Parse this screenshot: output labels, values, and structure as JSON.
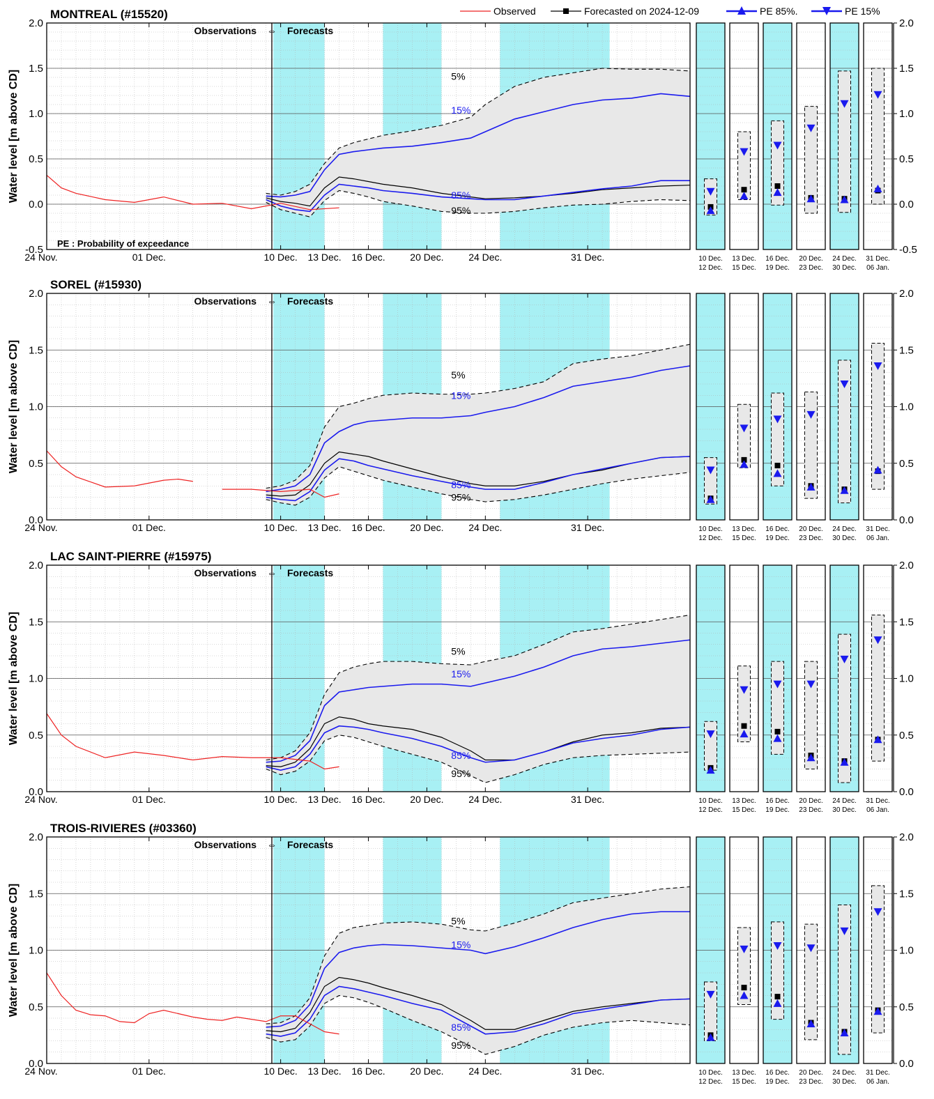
{
  "legend": {
    "observed": "Observed",
    "forecasted": "Forecasted on 2024-12-09",
    "pe85": "PE 85%.",
    "pe15": "PE 15%"
  },
  "common": {
    "ylabel": "Water level [m above CD]",
    "obs_label": "Observations",
    "fc_label": "Forecasts",
    "pe_note": "PE : Probability of exceedance",
    "x_ticks": [
      "24 Nov.",
      "01 Dec.",
      "10 Dec.",
      "13 Dec.",
      "16 Dec.",
      "20 Dec.",
      "24 Dec.",
      "31 Dec."
    ],
    "pct_labels": [
      "5%",
      "15%",
      "85%",
      "95%"
    ],
    "period_labels": [
      [
        "10 Dec.",
        "12 Dec."
      ],
      [
        "13 Dec.",
        "15 Dec."
      ],
      [
        "16 Dec.",
        "19 Dec."
      ],
      [
        "20 Dec.",
        "23 Dec."
      ],
      [
        "24 Dec.",
        "30 Dec."
      ],
      [
        "31 Dec.",
        "06 Jan."
      ]
    ]
  },
  "colors": {
    "observed": "#ee2222",
    "forecast": "#000000",
    "pe": "#1a1aee",
    "shade": "#a8f0f4",
    "band": "#e8e8e8",
    "grid": "#b0b0b0"
  },
  "chart_data": [
    {
      "type": "line",
      "title": "MONTREAL (#15520)",
      "ylim": [
        -0.5,
        2.0
      ],
      "y_ticks": [
        "-0.5",
        "0.0",
        "0.5",
        "1.0",
        "1.5",
        "2.0"
      ],
      "observed": {
        "x": [
          0,
          1,
          2,
          4,
          6,
          8,
          10,
          12,
          14,
          16,
          18,
          20
        ],
        "y": [
          0.32,
          0.18,
          0.12,
          0.05,
          0.02,
          0.08,
          0.0,
          0.01,
          -0.05,
          0.01,
          -0.06,
          -0.04
        ]
      },
      "forecast": {
        "x": [
          15,
          16,
          17,
          18,
          19,
          20,
          21,
          22,
          23,
          25,
          27,
          29,
          30,
          32,
          34,
          36,
          38,
          40,
          42,
          44
        ],
        "p05": [
          0.12,
          0.1,
          0.14,
          0.22,
          0.45,
          0.62,
          0.68,
          0.72,
          0.76,
          0.81,
          0.87,
          0.96,
          1.1,
          1.3,
          1.4,
          1.45,
          1.5,
          1.49,
          1.49,
          1.47
        ],
        "p15": [
          0.09,
          0.08,
          0.1,
          0.14,
          0.38,
          0.55,
          0.58,
          0.6,
          0.62,
          0.64,
          0.68,
          0.73,
          0.8,
          0.94,
          1.02,
          1.1,
          1.15,
          1.17,
          1.22,
          1.19
        ],
        "fc": [
          0.07,
          0.03,
          0.01,
          -0.02,
          0.18,
          0.3,
          0.28,
          0.25,
          0.22,
          0.18,
          0.12,
          0.08,
          0.06,
          0.07,
          0.09,
          0.12,
          0.16,
          0.18,
          0.2,
          0.21
        ],
        "p85": [
          0.05,
          -0.02,
          -0.06,
          -0.08,
          0.1,
          0.22,
          0.2,
          0.18,
          0.15,
          0.12,
          0.08,
          0.06,
          0.05,
          0.05,
          0.09,
          0.13,
          0.17,
          0.2,
          0.26,
          0.26
        ],
        "p95": [
          0.02,
          -0.06,
          -0.1,
          -0.14,
          0.04,
          0.15,
          0.12,
          0.08,
          0.03,
          -0.02,
          -0.08,
          -0.1,
          -0.1,
          -0.08,
          -0.04,
          -0.01,
          0.0,
          0.03,
          0.05,
          0.04
        ]
      },
      "pct_y": {
        "p05": 1.41,
        "p15": 1.04,
        "p85": 0.1,
        "p95": -0.07
      },
      "boxes": [
        {
          "lo": -0.12,
          "hi": 0.28,
          "p15": 0.14,
          "fc": -0.03,
          "p85": -0.07
        },
        {
          "lo": 0.05,
          "hi": 0.8,
          "p15": 0.58,
          "fc": 0.16,
          "p85": 0.09
        },
        {
          "lo": -0.01,
          "hi": 0.92,
          "p15": 0.65,
          "fc": 0.2,
          "p85": 0.13
        },
        {
          "lo": -0.1,
          "hi": 1.08,
          "p15": 0.84,
          "fc": 0.07,
          "p85": 0.06
        },
        {
          "lo": -0.09,
          "hi": 1.47,
          "p15": 1.11,
          "fc": 0.06,
          "p85": 0.05
        },
        {
          "lo": 0.0,
          "hi": 1.5,
          "p15": 1.21,
          "fc": 0.15,
          "p85": 0.17
        }
      ]
    },
    {
      "type": "line",
      "title": "SOREL (#15930)",
      "ylim": [
        0.0,
        2.0
      ],
      "y_ticks": [
        "0.0",
        "0.5",
        "1.0",
        "1.5",
        "2.0"
      ],
      "observed": {
        "x": [
          0,
          1,
          2,
          4,
          6,
          8,
          9,
          10,
          11.5,
          12,
          14,
          16,
          18,
          19,
          20
        ],
        "y": [
          0.61,
          0.47,
          0.38,
          0.29,
          0.3,
          0.35,
          0.36,
          0.34,
          null,
          0.27,
          0.27,
          0.25,
          0.27,
          0.2,
          0.23
        ]
      },
      "forecast": {
        "x": [
          15,
          16,
          17,
          18,
          19,
          20,
          21,
          22,
          23,
          25,
          27,
          29,
          30,
          32,
          34,
          36,
          38,
          40,
          42,
          44
        ],
        "p05": [
          0.28,
          0.3,
          0.35,
          0.48,
          0.82,
          1.0,
          1.03,
          1.07,
          1.1,
          1.12,
          1.11,
          1.11,
          1.12,
          1.16,
          1.22,
          1.38,
          1.42,
          1.45,
          1.5,
          1.55
        ],
        "p15": [
          0.25,
          0.27,
          0.3,
          0.4,
          0.68,
          0.78,
          0.84,
          0.87,
          0.88,
          0.9,
          0.9,
          0.92,
          0.95,
          1.0,
          1.08,
          1.18,
          1.22,
          1.26,
          1.32,
          1.36
        ],
        "fc": [
          0.22,
          0.21,
          0.22,
          0.31,
          0.5,
          0.6,
          0.58,
          0.56,
          0.52,
          0.45,
          0.38,
          0.32,
          0.3,
          0.3,
          0.34,
          0.4,
          0.44,
          0.5,
          0.55,
          0.56
        ],
        "p85": [
          0.2,
          0.18,
          0.17,
          0.25,
          0.44,
          0.54,
          0.52,
          0.48,
          0.45,
          0.39,
          0.34,
          0.29,
          0.27,
          0.27,
          0.33,
          0.4,
          0.45,
          0.5,
          0.55,
          0.56
        ],
        "p95": [
          0.18,
          0.15,
          0.13,
          0.2,
          0.37,
          0.47,
          0.43,
          0.39,
          0.35,
          0.29,
          0.23,
          0.18,
          0.16,
          0.18,
          0.22,
          0.27,
          0.32,
          0.36,
          0.39,
          0.42
        ]
      },
      "pct_y": {
        "p05": 1.28,
        "p15": 1.1,
        "p85": 0.31,
        "p95": 0.2
      },
      "boxes": [
        {
          "lo": 0.14,
          "hi": 0.55,
          "p15": 0.44,
          "fc": 0.19,
          "p85": 0.18
        },
        {
          "lo": 0.46,
          "hi": 1.02,
          "p15": 0.81,
          "fc": 0.53,
          "p85": 0.49
        },
        {
          "lo": 0.3,
          "hi": 1.12,
          "p15": 0.89,
          "fc": 0.48,
          "p85": 0.41
        },
        {
          "lo": 0.19,
          "hi": 1.13,
          "p15": 0.93,
          "fc": 0.3,
          "p85": 0.29
        },
        {
          "lo": 0.15,
          "hi": 1.41,
          "p15": 1.2,
          "fc": 0.27,
          "p85": 0.26
        },
        {
          "lo": 0.27,
          "hi": 1.56,
          "p15": 1.36,
          "fc": 0.43,
          "p85": 0.44
        }
      ]
    },
    {
      "type": "line",
      "title": "LAC SAINT-PIERRE (#15975)",
      "ylim": [
        0.0,
        2.0
      ],
      "y_ticks": [
        "0.0",
        "0.5",
        "1.0",
        "1.5",
        "2.0"
      ],
      "observed": {
        "x": [
          0,
          1,
          2,
          4,
          6,
          8,
          10,
          12,
          14,
          16,
          18,
          19,
          20
        ],
        "y": [
          0.69,
          0.5,
          0.4,
          0.3,
          0.35,
          0.32,
          0.28,
          0.31,
          0.3,
          0.3,
          0.27,
          0.2,
          0.22
        ]
      },
      "forecast": {
        "x": [
          15,
          16,
          17,
          18,
          19,
          20,
          21,
          22,
          23,
          25,
          27,
          29,
          30,
          32,
          34,
          36,
          38,
          40,
          42,
          44
        ],
        "p05": [
          0.28,
          0.3,
          0.36,
          0.52,
          0.86,
          1.05,
          1.1,
          1.13,
          1.15,
          1.15,
          1.13,
          1.12,
          1.15,
          1.2,
          1.3,
          1.41,
          1.44,
          1.48,
          1.52,
          1.56
        ],
        "p15": [
          0.26,
          0.27,
          0.32,
          0.45,
          0.76,
          0.88,
          0.9,
          0.92,
          0.93,
          0.95,
          0.95,
          0.93,
          0.96,
          1.02,
          1.1,
          1.2,
          1.26,
          1.28,
          1.31,
          1.34
        ],
        "fc": [
          0.23,
          0.22,
          0.26,
          0.38,
          0.6,
          0.66,
          0.64,
          0.6,
          0.58,
          0.55,
          0.48,
          0.36,
          0.28,
          0.28,
          0.35,
          0.44,
          0.5,
          0.52,
          0.56,
          0.57
        ],
        "p85": [
          0.22,
          0.19,
          0.22,
          0.33,
          0.52,
          0.58,
          0.57,
          0.55,
          0.52,
          0.47,
          0.4,
          0.3,
          0.26,
          0.28,
          0.35,
          0.43,
          0.47,
          0.5,
          0.55,
          0.57
        ],
        "p95": [
          0.2,
          0.15,
          0.18,
          0.27,
          0.45,
          0.5,
          0.48,
          0.44,
          0.4,
          0.33,
          0.26,
          0.14,
          0.08,
          0.15,
          0.24,
          0.3,
          0.32,
          0.33,
          0.34,
          0.35
        ]
      },
      "pct_y": {
        "p05": 1.24,
        "p15": 1.04,
        "p85": 0.32,
        "p95": 0.16
      },
      "boxes": [
        {
          "lo": 0.19,
          "hi": 0.62,
          "p15": 0.51,
          "fc": 0.21,
          "p85": 0.19
        },
        {
          "lo": 0.44,
          "hi": 1.11,
          "p15": 0.9,
          "fc": 0.58,
          "p85": 0.51
        },
        {
          "lo": 0.33,
          "hi": 1.15,
          "p15": 0.95,
          "fc": 0.53,
          "p85": 0.47
        },
        {
          "lo": 0.2,
          "hi": 1.15,
          "p15": 0.95,
          "fc": 0.32,
          "p85": 0.3
        },
        {
          "lo": 0.08,
          "hi": 1.39,
          "p15": 1.17,
          "fc": 0.27,
          "p85": 0.26
        },
        {
          "lo": 0.27,
          "hi": 1.56,
          "p15": 1.34,
          "fc": 0.46,
          "p85": 0.46
        }
      ]
    },
    {
      "type": "line",
      "title": "TROIS-RIVIERES (#03360)",
      "ylim": [
        0.0,
        2.0
      ],
      "y_ticks": [
        "0.0",
        "0.5",
        "1.0",
        "1.5",
        "2.0"
      ],
      "observed": {
        "x": [
          0,
          1,
          2,
          3,
          4,
          5,
          6,
          7,
          8,
          9,
          10,
          11,
          12,
          13,
          14,
          15,
          16,
          17,
          18,
          19,
          20
        ],
        "y": [
          0.8,
          0.6,
          0.47,
          0.43,
          0.42,
          0.37,
          0.36,
          0.44,
          0.47,
          0.44,
          0.41,
          0.39,
          0.38,
          0.41,
          0.39,
          0.37,
          0.42,
          0.42,
          0.35,
          0.28,
          0.26
        ]
      },
      "forecast": {
        "x": [
          15,
          16,
          17,
          18,
          19,
          20,
          21,
          22,
          23,
          25,
          27,
          29,
          30,
          32,
          34,
          36,
          38,
          40,
          42,
          44
        ],
        "p05": [
          0.35,
          0.36,
          0.42,
          0.58,
          0.95,
          1.15,
          1.2,
          1.22,
          1.24,
          1.25,
          1.23,
          1.18,
          1.17,
          1.24,
          1.32,
          1.42,
          1.46,
          1.5,
          1.54,
          1.56
        ],
        "p15": [
          0.32,
          0.33,
          0.38,
          0.52,
          0.84,
          0.98,
          1.02,
          1.04,
          1.05,
          1.04,
          1.02,
          1.0,
          0.97,
          1.03,
          1.11,
          1.2,
          1.27,
          1.32,
          1.34,
          1.34
        ],
        "fc": [
          0.29,
          0.28,
          0.31,
          0.45,
          0.68,
          0.76,
          0.74,
          0.71,
          0.67,
          0.6,
          0.52,
          0.38,
          0.3,
          0.3,
          0.38,
          0.46,
          0.5,
          0.53,
          0.56,
          0.57
        ],
        "p85": [
          0.26,
          0.24,
          0.27,
          0.39,
          0.6,
          0.68,
          0.66,
          0.63,
          0.6,
          0.53,
          0.47,
          0.33,
          0.26,
          0.28,
          0.35,
          0.44,
          0.48,
          0.52,
          0.56,
          0.57
        ],
        "p95": [
          0.23,
          0.19,
          0.21,
          0.33,
          0.53,
          0.6,
          0.58,
          0.54,
          0.49,
          0.38,
          0.28,
          0.15,
          0.08,
          0.15,
          0.25,
          0.32,
          0.36,
          0.38,
          0.36,
          0.34
        ]
      },
      "pct_y": {
        "p05": 1.26,
        "p15": 1.05,
        "p85": 0.32,
        "p95": 0.16
      },
      "boxes": [
        {
          "lo": 0.2,
          "hi": 0.72,
          "p15": 0.61,
          "fc": 0.25,
          "p85": 0.23
        },
        {
          "lo": 0.52,
          "hi": 1.2,
          "p15": 1.01,
          "fc": 0.67,
          "p85": 0.6
        },
        {
          "lo": 0.39,
          "hi": 1.25,
          "p15": 1.04,
          "fc": 0.59,
          "p85": 0.53
        },
        {
          "lo": 0.21,
          "hi": 1.23,
          "p15": 1.02,
          "fc": 0.36,
          "p85": 0.35
        },
        {
          "lo": 0.08,
          "hi": 1.4,
          "p15": 1.17,
          "fc": 0.28,
          "p85": 0.27
        },
        {
          "lo": 0.27,
          "hi": 1.57,
          "p15": 1.34,
          "fc": 0.47,
          "p85": 0.46
        }
      ]
    }
  ]
}
